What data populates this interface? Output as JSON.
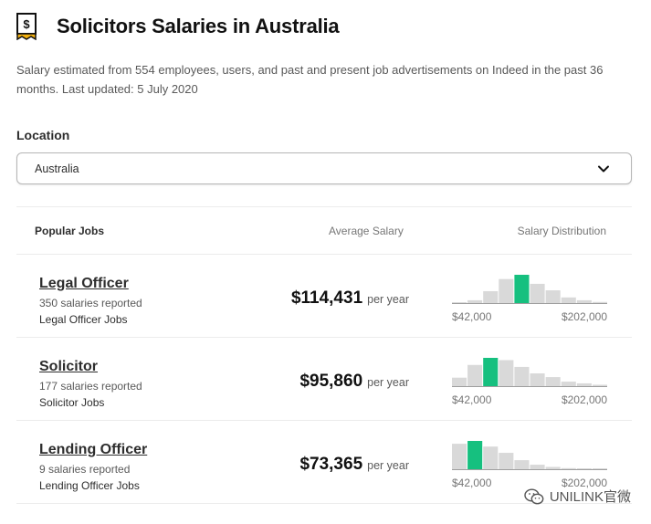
{
  "header": {
    "title": "Solicitors Salaries in Australia",
    "icon": "salary-receipt-icon"
  },
  "subtitle": "Salary estimated from 554 employees, users, and past and present job advertisements on Indeed in the past 36 months. Last updated: 5 July 2020",
  "location": {
    "label": "Location",
    "value": "Australia"
  },
  "table": {
    "headers": {
      "jobs": "Popular Jobs",
      "salary": "Average Salary",
      "distribution": "Salary Distribution"
    },
    "rows": [
      {
        "title": "Legal Officer",
        "count": "350 salaries reported",
        "link": "Legal Officer Jobs",
        "amount": "$114,431",
        "period": "per year",
        "dist_min": "$42,000",
        "dist_max": "$202,000",
        "bars": [
          0.03,
          0.1,
          0.42,
          0.85,
          1.0,
          0.68,
          0.45,
          0.2,
          0.1,
          0.04
        ],
        "highlight": 4
      },
      {
        "title": "Solicitor",
        "count": "177 salaries reported",
        "link": "Solicitor Jobs",
        "amount": "$95,860",
        "period": "per year",
        "dist_min": "$42,000",
        "dist_max": "$202,000",
        "bars": [
          0.3,
          0.75,
          1.0,
          0.92,
          0.68,
          0.45,
          0.32,
          0.16,
          0.1,
          0.05
        ],
        "highlight": 2
      },
      {
        "title": "Lending Officer",
        "count": "9 salaries reported",
        "link": "Lending Officer Jobs",
        "amount": "$73,365",
        "period": "per year",
        "dist_min": "$42,000",
        "dist_max": "$202,000",
        "bars": [
          0.9,
          1.0,
          0.8,
          0.58,
          0.32,
          0.16,
          0.08,
          0.04,
          0.02,
          0.02
        ],
        "highlight": 1
      }
    ]
  },
  "watermark": {
    "text": "UNILINK官微",
    "icon": "wechat-icon"
  },
  "colors": {
    "highlight_bar": "#16c07f",
    "bar": "#d9d9d9"
  }
}
